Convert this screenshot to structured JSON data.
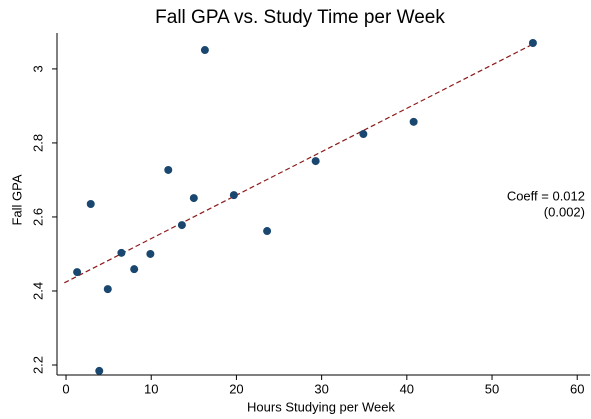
{
  "chart_data": {
    "type": "scatter",
    "title": "Fall GPA vs. Study Time per Week",
    "x_label": "Hours Studying per Week",
    "y_label": "Fall GPA",
    "x": [
      1.3,
      2.9,
      3.9,
      4.9,
      6.5,
      8.0,
      9.9,
      12.0,
      13.6,
      15.0,
      16.3,
      19.7,
      23.6,
      29.3,
      34.9,
      40.8,
      54.8
    ],
    "values": [
      2.451,
      2.635,
      2.184,
      2.405,
      2.503,
      2.459,
      2.5,
      2.727,
      2.578,
      2.651,
      3.051,
      2.659,
      2.562,
      2.751,
      2.824,
      2.857,
      3.07
    ],
    "color": "#1a476f",
    "fit": {
      "x": [
        -0.2,
        54.8
      ],
      "y": [
        2.422,
        3.067
      ],
      "color": "#8b1a1a"
    },
    "annotations": [
      "Coeff = 0.012",
      "(0.002)"
    ],
    "xlim": [
      -1.06,
      61.5
    ],
    "ylim": [
      2.173,
      3.097
    ],
    "xticks": [
      0,
      10,
      20,
      30,
      40,
      50,
      60
    ],
    "yticks": [
      2.2,
      2.4,
      2.6,
      2.8,
      3
    ],
    "grid": false
  }
}
